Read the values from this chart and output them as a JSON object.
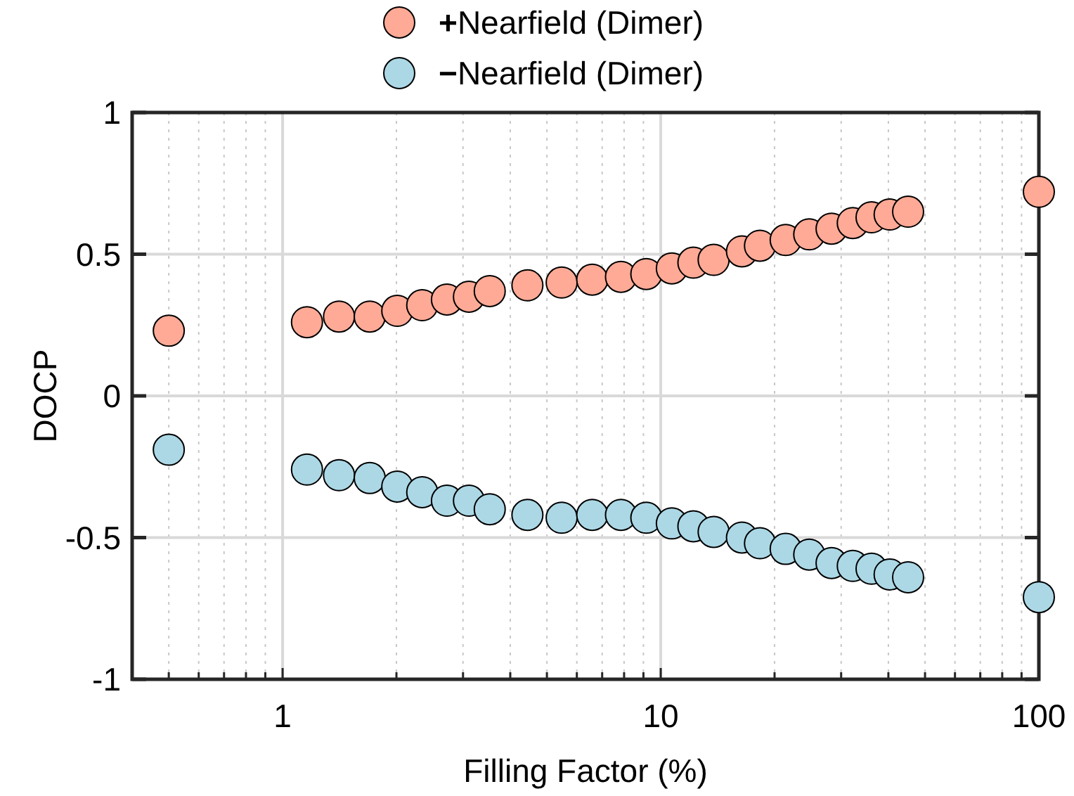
{
  "chart_data": {
    "type": "scatter",
    "xlabel": "Filling Factor (%)",
    "ylabel": "DOCP",
    "log": "x",
    "x": [
      0.5,
      1.16,
      1.41,
      1.7,
      2.01,
      2.34,
      2.72,
      3.11,
      3.53,
      4.44,
      5.47,
      6.59,
      7.85,
      9.16,
      10.7,
      12.2,
      13.8,
      16.4,
      18.3,
      21.4,
      24.7,
      28.3,
      32.2,
      36.1,
      40.3,
      45.1,
      100
    ],
    "series": [
      {
        "name": "+Nearfield (Dimer)",
        "color": "#ffaa96",
        "values": [
          0.23,
          0.26,
          0.28,
          0.28,
          0.3,
          0.32,
          0.34,
          0.35,
          0.37,
          0.39,
          0.4,
          0.41,
          0.42,
          0.43,
          0.45,
          0.47,
          0.48,
          0.51,
          0.53,
          0.55,
          0.57,
          0.59,
          0.61,
          0.63,
          0.64,
          0.65,
          0.72
        ]
      },
      {
        "name": "−Nearfield (Dimer)",
        "color": "#acd8e6",
        "values": [
          -0.19,
          -0.26,
          -0.28,
          -0.29,
          -0.32,
          -0.34,
          -0.37,
          -0.37,
          -0.4,
          -0.42,
          -0.43,
          -0.42,
          -0.42,
          -0.43,
          -0.45,
          -0.46,
          -0.48,
          -0.5,
          -0.52,
          -0.54,
          -0.56,
          -0.59,
          -0.6,
          -0.61,
          -0.63,
          -0.64,
          -0.71
        ]
      }
    ],
    "xlim": [
      0.4,
      100
    ],
    "xticks": [
      {
        "value": 0.4,
        "label": null
      },
      {
        "value": 0.5,
        "label": null
      },
      {
        "value": 0.6,
        "label": null
      },
      {
        "value": 0.7,
        "label": null
      },
      {
        "value": 0.8,
        "label": null
      },
      {
        "value": 0.9,
        "label": null
      },
      1,
      {
        "value": 2,
        "label": null
      },
      {
        "value": 3,
        "label": null
      },
      {
        "value": 4,
        "label": null
      },
      {
        "value": 5,
        "label": null
      },
      {
        "value": 6,
        "label": null
      },
      {
        "value": 7,
        "label": null
      },
      {
        "value": 8,
        "label": null
      },
      {
        "value": 9,
        "label": null
      },
      10,
      {
        "value": 20,
        "label": null
      },
      {
        "value": 30,
        "label": null
      },
      {
        "value": 40,
        "label": null
      },
      {
        "value": 50,
        "label": null
      },
      {
        "value": 60,
        "label": null
      },
      {
        "value": 70,
        "label": null
      },
      {
        "value": 80,
        "label": null
      },
      {
        "value": 90,
        "label": null
      },
      100
    ],
    "ylim": [
      -1,
      1
    ],
    "yticks": [
      -1,
      -0.5,
      0,
      0.5,
      1
    ],
    "grid": true,
    "legend": "top",
    "marker": "circle"
  }
}
